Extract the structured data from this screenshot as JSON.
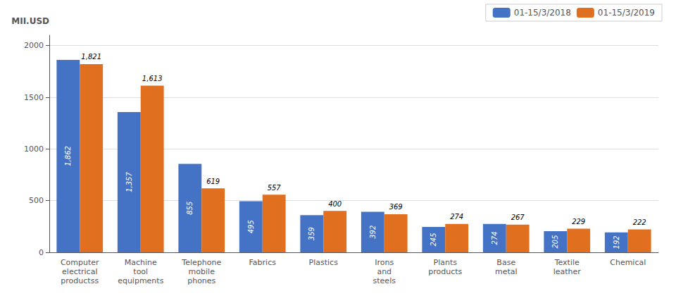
{
  "chart_data": {
    "type": "bar",
    "categories": [
      "Computer\nelectrical\nproductss",
      "Machine\ntool\nequipments",
      "Telephone\nmobile\nphones",
      "Fabrics",
      "Plastics",
      "Irons\nand\nsteels",
      "Plants\nproducts",
      "Base\nmetal",
      "Textile\nleather",
      "Chemical"
    ],
    "series": [
      {
        "name": "01-15/3/2018",
        "color": "#4472C4",
        "values": [
          1862,
          1357,
          855,
          495,
          359,
          392,
          245,
          274,
          205,
          192
        ],
        "value_labels": [
          "1,862",
          "1,357",
          "855",
          "495",
          "359",
          "392",
          "245",
          "274",
          "205",
          "192"
        ]
      },
      {
        "name": "01-15/3/2019",
        "color": "#E07020",
        "values": [
          1821,
          1613,
          619,
          557,
          400,
          369,
          274,
          267,
          229,
          222
        ],
        "value_labels": [
          "1,821",
          "1,613",
          "619",
          "557",
          "400",
          "369",
          "274",
          "267",
          "229",
          "222"
        ]
      }
    ],
    "ylabel": "MII.USD",
    "ylim": [
      0,
      2100
    ],
    "yticks": [
      0,
      500,
      1000,
      1500,
      2000
    ],
    "grid": true,
    "legend": "upper right",
    "data_labels": true
  }
}
